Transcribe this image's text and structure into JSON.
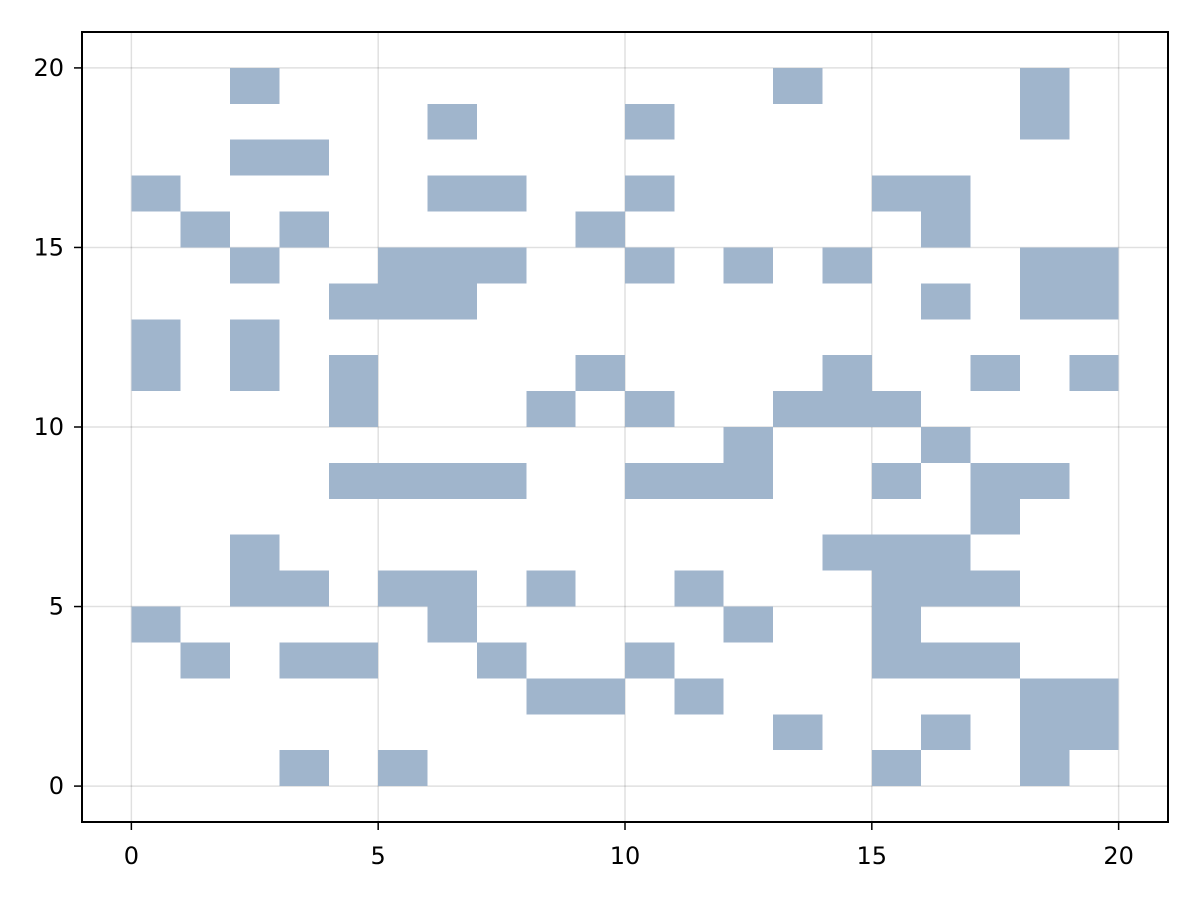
{
  "chart_data": {
    "type": "heatmap",
    "title": "",
    "xlabel": "",
    "ylabel": "",
    "xlim": [
      -1,
      21
    ],
    "ylim": [
      -1,
      21
    ],
    "x_ticks": [
      0,
      5,
      10,
      15,
      20
    ],
    "y_ticks": [
      0,
      5,
      10,
      15,
      20
    ],
    "grid": true,
    "cell_color": "#a0b5cc",
    "cell_size": 1,
    "filled_cells": [
      [
        2,
        19
      ],
      [
        13,
        19
      ],
      [
        18,
        19
      ],
      [
        6,
        18
      ],
      [
        10,
        18
      ],
      [
        18,
        18
      ],
      [
        2,
        17
      ],
      [
        3,
        17
      ],
      [
        0,
        16
      ],
      [
        6,
        16
      ],
      [
        7,
        16
      ],
      [
        10,
        16
      ],
      [
        15,
        16
      ],
      [
        16,
        16
      ],
      [
        1,
        15
      ],
      [
        3,
        15
      ],
      [
        9,
        15
      ],
      [
        16,
        15
      ],
      [
        2,
        14
      ],
      [
        5,
        14
      ],
      [
        6,
        14
      ],
      [
        7,
        14
      ],
      [
        10,
        14
      ],
      [
        12,
        14
      ],
      [
        14,
        14
      ],
      [
        18,
        14
      ],
      [
        19,
        14
      ],
      [
        4,
        13
      ],
      [
        5,
        13
      ],
      [
        6,
        13
      ],
      [
        16,
        13
      ],
      [
        18,
        13
      ],
      [
        19,
        13
      ],
      [
        0,
        12
      ],
      [
        2,
        12
      ],
      [
        0,
        11
      ],
      [
        2,
        11
      ],
      [
        4,
        11
      ],
      [
        9,
        11
      ],
      [
        14,
        11
      ],
      [
        17,
        11
      ],
      [
        19,
        11
      ],
      [
        4,
        10
      ],
      [
        8,
        10
      ],
      [
        10,
        10
      ],
      [
        13,
        10
      ],
      [
        14,
        10
      ],
      [
        15,
        10
      ],
      [
        12,
        9
      ],
      [
        16,
        9
      ],
      [
        4,
        8
      ],
      [
        5,
        8
      ],
      [
        6,
        8
      ],
      [
        7,
        8
      ],
      [
        10,
        8
      ],
      [
        11,
        8
      ],
      [
        12,
        8
      ],
      [
        15,
        8
      ],
      [
        17,
        8
      ],
      [
        18,
        8
      ],
      [
        17,
        7
      ],
      [
        2,
        6
      ],
      [
        14,
        6
      ],
      [
        15,
        6
      ],
      [
        16,
        6
      ],
      [
        2,
        5
      ],
      [
        3,
        5
      ],
      [
        5,
        5
      ],
      [
        6,
        5
      ],
      [
        8,
        5
      ],
      [
        11,
        5
      ],
      [
        15,
        5
      ],
      [
        16,
        5
      ],
      [
        17,
        5
      ],
      [
        0,
        4
      ],
      [
        6,
        4
      ],
      [
        12,
        4
      ],
      [
        15,
        4
      ],
      [
        1,
        3
      ],
      [
        3,
        3
      ],
      [
        4,
        3
      ],
      [
        7,
        3
      ],
      [
        10,
        3
      ],
      [
        15,
        3
      ],
      [
        16,
        3
      ],
      [
        17,
        3
      ],
      [
        8,
        2
      ],
      [
        9,
        2
      ],
      [
        11,
        2
      ],
      [
        18,
        2
      ],
      [
        19,
        2
      ],
      [
        13,
        1
      ],
      [
        16,
        1
      ],
      [
        18,
        1
      ],
      [
        19,
        1
      ],
      [
        3,
        0
      ],
      [
        5,
        0
      ],
      [
        15,
        0
      ],
      [
        18,
        0
      ]
    ]
  }
}
